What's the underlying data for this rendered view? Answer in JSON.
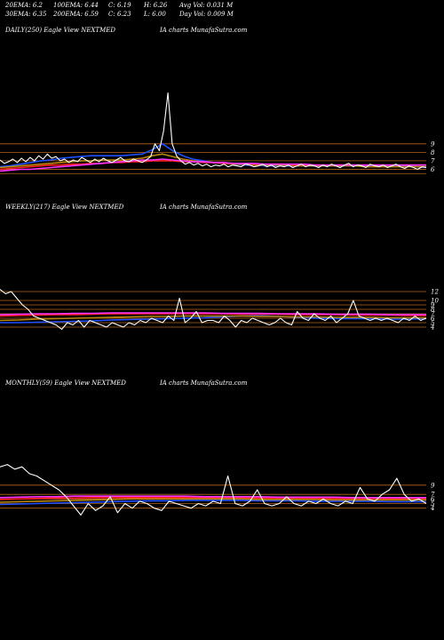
{
  "header": {
    "row1": [
      "20EMA: 6.2",
      "100EMA: 6.44",
      "C: 6.19",
      "H: 6.26",
      "Avg Vol: 0.031 M"
    ],
    "row2": [
      "30EMA: 6.35",
      "200EMA: 6.59",
      "C: 6.23",
      "L: 6.00",
      "Day Vol: 0.009 M"
    ]
  },
  "colors": {
    "background": "#000000",
    "price": "#ffffff",
    "ema_blue": "#1f4fff",
    "ema_red": "#ff2020",
    "ema_magenta": "#ff33ff",
    "ema_gold": "#b8860b",
    "level_line": "#b5651d"
  },
  "chart_data": [
    {
      "type": "line",
      "title_left": "DAILY(250) Eagle  View  NEXTMED",
      "title_right": "IA charts MunafaSutra.com",
      "yticks": [
        9,
        8,
        7,
        6
      ],
      "ylim": [
        5,
        16
      ],
      "level_lines": [
        9,
        8,
        7,
        6,
        5.5
      ],
      "series": [
        {
          "role": "price",
          "values": [
            7.1,
            6.7,
            6.9,
            7.2,
            6.8,
            7.3,
            6.9,
            7.4,
            7.0,
            7.6,
            7.2,
            7.8,
            7.3,
            7.5,
            7.0,
            7.2,
            6.8,
            7.1,
            6.9,
            7.4,
            7.1,
            6.8,
            7.2,
            6.9,
            7.3,
            7.0,
            6.8,
            7.1,
            7.4,
            7.0,
            6.9,
            7.2,
            7.0,
            6.8,
            7.1,
            7.5,
            9.0,
            8.2,
            10.5,
            15.0,
            9.0,
            7.6,
            7.0,
            6.6,
            6.8,
            6.5,
            6.7,
            6.4,
            6.6,
            6.3,
            6.5,
            6.4,
            6.6,
            6.3,
            6.5,
            6.4,
            6.3,
            6.6,
            6.5,
            6.3,
            6.4,
            6.6,
            6.3,
            6.5,
            6.2,
            6.4,
            6.3,
            6.5,
            6.2,
            6.4,
            6.6,
            6.3,
            6.5,
            6.4,
            6.2,
            6.5,
            6.3,
            6.6,
            6.4,
            6.2,
            6.5,
            6.7,
            6.3,
            6.5,
            6.4,
            6.2,
            6.6,
            6.4,
            6.3,
            6.5,
            6.2,
            6.4,
            6.6,
            6.3,
            6.1,
            6.4,
            6.2,
            6.0,
            6.3,
            6.2
          ]
        },
        {
          "role": "ema",
          "color": "ema_blue",
          "values": [
            6.3,
            6.4,
            6.6,
            6.8,
            7.0,
            7.1,
            7.3,
            7.4,
            7.5,
            7.6,
            7.6,
            7.6,
            7.6,
            7.7,
            7.8,
            8.3,
            9.0,
            8.2,
            7.6,
            7.2,
            7.0,
            6.8,
            6.7,
            6.6,
            6.5,
            6.5,
            6.4,
            6.4,
            6.4,
            6.4,
            6.4,
            6.4,
            6.4,
            6.4,
            6.4,
            6.4,
            6.4,
            6.4,
            6.3,
            6.4,
            6.4,
            6.3,
            6.2
          ]
        },
        {
          "role": "ema",
          "color": "ema_gold",
          "values": [
            6.2,
            6.3,
            6.4,
            6.5,
            6.6,
            6.7,
            6.8,
            6.9,
            7.0,
            7.0,
            7.1,
            7.1,
            7.1,
            7.2,
            7.3,
            7.6,
            7.8,
            7.5,
            7.2,
            7.0,
            6.9,
            6.8,
            6.7,
            6.6,
            6.6,
            6.5,
            6.5,
            6.5,
            6.5,
            6.4,
            6.4,
            6.4,
            6.4,
            6.4,
            6.4,
            6.4,
            6.3,
            6.3,
            6.3,
            6.3,
            6.3,
            6.3,
            6.3
          ]
        },
        {
          "role": "ema",
          "color": "ema_red",
          "values": [
            6.0,
            6.1,
            6.2,
            6.3,
            6.4,
            6.5,
            6.5,
            6.6,
            6.6,
            6.7,
            6.7,
            6.8,
            6.8,
            6.9,
            6.9,
            7.0,
            7.0,
            7.0,
            6.9,
            6.9,
            6.8,
            6.8,
            6.7,
            6.7,
            6.7,
            6.6,
            6.6,
            6.6,
            6.6,
            6.5,
            6.5,
            6.5,
            6.5,
            6.5,
            6.5,
            6.5,
            6.5,
            6.5,
            6.5,
            6.5,
            6.5,
            6.5,
            6.5
          ]
        },
        {
          "role": "ema",
          "color": "ema_magenta",
          "values": [
            5.8,
            5.9,
            6.0,
            6.0,
            6.1,
            6.2,
            6.3,
            6.4,
            6.5,
            6.6,
            6.7,
            6.8,
            6.9,
            7.0,
            7.1,
            7.1,
            7.2,
            7.1,
            7.0,
            6.9,
            6.9,
            6.8,
            6.8,
            6.7,
            6.7,
            6.7,
            6.6,
            6.6,
            6.6,
            6.6,
            6.6,
            6.5,
            6.5,
            6.5,
            6.5,
            6.5,
            6.5,
            6.5,
            6.5,
            6.5,
            6.5,
            6.5,
            6.5
          ]
        }
      ]
    },
    {
      "type": "line",
      "title_left": "WEEKLY(217) Eagle  View  NEXTMED",
      "title_right": "IA charts MunafaSutra.com",
      "yticks": [
        12,
        10,
        9,
        8,
        7,
        6,
        5,
        4
      ],
      "ylim": [
        2,
        14
      ],
      "level_lines": [
        12,
        10,
        9,
        8,
        7,
        6,
        5,
        4
      ],
      "series": [
        {
          "role": "price",
          "values": [
            12.5,
            11.5,
            12.0,
            10.5,
            9.0,
            8.0,
            6.5,
            6.0,
            5.5,
            5.0,
            4.5,
            3.5,
            5.0,
            4.5,
            5.5,
            4.0,
            5.5,
            5.0,
            4.5,
            4.0,
            5.0,
            4.5,
            4.0,
            5.0,
            4.5,
            5.5,
            5.0,
            6.0,
            5.5,
            5.0,
            6.5,
            5.5,
            10.5,
            5.0,
            6.0,
            7.5,
            5.0,
            5.5,
            5.5,
            5.0,
            6.5,
            5.5,
            4.0,
            5.5,
            5.0,
            6.0,
            5.5,
            5.0,
            4.5,
            5.0,
            6.0,
            5.0,
            4.5,
            7.5,
            6.0,
            5.5,
            7.0,
            6.0,
            5.5,
            6.5,
            5.0,
            6.0,
            7.0,
            10.0,
            6.5,
            6.0,
            5.5,
            6.0,
            5.5,
            6.0,
            5.5,
            5.0,
            6.0,
            5.5,
            6.5,
            5.5,
            6.0
          ]
        },
        {
          "role": "ema",
          "color": "ema_blue",
          "values": [
            5.0,
            5.0,
            5.1,
            5.2,
            5.3,
            5.4,
            5.6,
            5.7,
            5.8,
            5.9,
            6.0,
            6.1,
            6.3,
            6.5,
            6.6,
            6.4,
            6.2,
            6.0,
            5.9,
            5.9,
            5.9,
            5.8,
            5.8,
            5.9
          ]
        },
        {
          "role": "ema",
          "color": "ema_red",
          "values": [
            6.5,
            6.6,
            6.7,
            6.8,
            6.8,
            6.9,
            7.0,
            7.0,
            7.0,
            7.0,
            7.0,
            7.0,
            7.0,
            6.9,
            6.9,
            6.9,
            6.8,
            6.8,
            6.8,
            6.7,
            6.7,
            6.7,
            6.6,
            6.6
          ]
        },
        {
          "role": "ema",
          "color": "ema_magenta",
          "values": [
            6.8,
            6.9,
            7.0,
            7.0,
            7.1,
            7.1,
            7.2,
            7.2,
            7.2,
            7.2,
            7.2,
            7.2,
            7.1,
            7.1,
            7.1,
            7.0,
            7.0,
            7.0,
            6.9,
            6.9,
            6.9,
            6.8,
            6.8,
            6.8
          ]
        },
        {
          "role": "ema",
          "color": "ema_gold",
          "values": [
            5.5,
            5.6,
            5.8,
            5.9,
            6.0,
            6.1,
            6.2,
            6.3,
            6.4,
            6.4,
            6.5,
            6.5,
            6.5,
            6.5,
            6.4,
            6.4,
            6.3,
            6.3,
            6.2,
            6.2,
            6.2,
            6.1,
            6.1,
            6.1
          ]
        }
      ]
    },
    {
      "type": "line",
      "title_left": "MONTHLY(59) Eagle  View  NEXTMED",
      "title_right": "IA charts MunafaSutra.com",
      "yticks": [
        9,
        7,
        6,
        5,
        4
      ],
      "ylim": [
        2,
        14
      ],
      "level_lines": [
        9,
        7,
        6,
        5,
        4
      ],
      "series": [
        {
          "role": "price",
          "values": [
            13.0,
            13.5,
            12.5,
            13.0,
            11.5,
            11.0,
            10.0,
            9.0,
            8.0,
            6.5,
            4.5,
            2.5,
            5.0,
            3.5,
            4.5,
            6.5,
            3.0,
            5.0,
            4.0,
            5.5,
            5.0,
            4.0,
            3.5,
            5.5,
            5.0,
            4.5,
            4.0,
            5.0,
            4.5,
            5.5,
            5.0,
            11.0,
            5.0,
            4.5,
            5.5,
            8.0,
            5.0,
            4.5,
            5.0,
            6.5,
            5.0,
            4.5,
            5.5,
            5.0,
            6.0,
            5.0,
            4.5,
            5.5,
            5.0,
            8.5,
            6.0,
            5.5,
            7.0,
            8.0,
            10.5,
            7.0,
            5.5,
            6.0,
            5.0
          ]
        },
        {
          "role": "ema",
          "color": "ema_blue",
          "values": [
            4.8,
            4.9,
            5.0,
            5.1,
            5.2,
            5.3,
            5.4,
            5.5,
            5.6,
            5.6,
            5.7,
            5.7,
            5.7,
            5.7,
            5.6,
            5.6,
            5.6,
            5.5,
            5.5,
            5.5,
            5.5,
            5.4,
            5.4,
            5.4
          ]
        },
        {
          "role": "ema",
          "color": "ema_red",
          "values": [
            5.9,
            6.0,
            6.1,
            6.2,
            6.2,
            6.3,
            6.3,
            6.3,
            6.3,
            6.3,
            6.3,
            6.3,
            6.3,
            6.2,
            6.2,
            6.2,
            6.2,
            6.1,
            6.1,
            6.1,
            6.1,
            6.0,
            6.0,
            6.0
          ]
        },
        {
          "role": "ema",
          "color": "ema_magenta",
          "values": [
            6.3,
            6.4,
            6.5,
            6.5,
            6.6,
            6.6,
            6.6,
            6.6,
            6.6,
            6.6,
            6.6,
            6.5,
            6.5,
            6.5,
            6.5,
            6.4,
            6.4,
            6.4,
            6.4,
            6.3,
            6.3,
            6.3,
            6.3,
            6.3
          ]
        },
        {
          "role": "ema",
          "color": "ema_gold",
          "values": [
            5.3,
            5.4,
            5.5,
            5.6,
            5.7,
            5.8,
            5.9,
            6.0,
            6.0,
            6.0,
            6.0,
            6.0,
            6.0,
            6.0,
            5.9,
            5.9,
            5.9,
            5.9,
            5.8,
            5.8,
            5.8,
            5.8,
            5.8,
            5.8
          ]
        }
      ]
    }
  ]
}
